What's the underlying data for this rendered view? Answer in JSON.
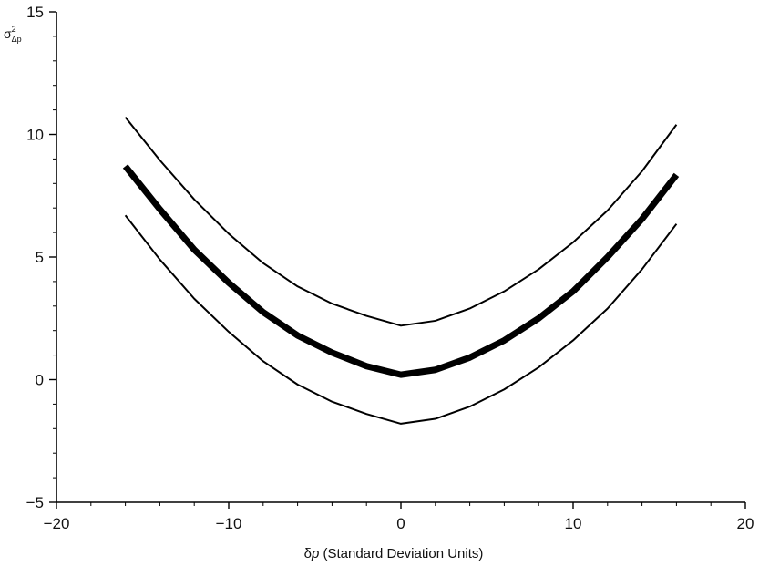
{
  "chart_data": {
    "type": "line",
    "title": "",
    "xlabel": {
      "symbol": "δ",
      "var": "p",
      "rest": " (Standard Deviation Units)"
    },
    "ylabel": {
      "base": "σ",
      "sup": "2",
      "sub": "Δp"
    },
    "xlim": [
      -20,
      20
    ],
    "ylim": [
      -5,
      15
    ],
    "xticks": [
      -20,
      -10,
      0,
      10,
      20
    ],
    "yticks": [
      -5,
      0,
      5,
      10,
      15
    ],
    "xtick_labels": [
      "−20",
      "−10",
      "0",
      "10",
      "20"
    ],
    "ytick_labels": [
      "−5",
      "0",
      "5",
      "10",
      "15"
    ],
    "grid": false,
    "legend": "none",
    "x": [
      -16,
      -14,
      -12,
      -10,
      -8,
      -6,
      -4,
      -2,
      0,
      2,
      4,
      6,
      8,
      10,
      12,
      14,
      16
    ],
    "series": [
      {
        "role": "upper",
        "color": "#000000",
        "style": "thin",
        "values": [
          10.7,
          8.95,
          7.35,
          5.95,
          4.75,
          3.8,
          3.1,
          2.6,
          2.2,
          2.4,
          2.9,
          3.6,
          4.5,
          5.6,
          6.9,
          8.5,
          10.4
        ]
      },
      {
        "role": "center",
        "color": "#000000",
        "style": "thick",
        "values": [
          8.7,
          6.95,
          5.3,
          3.95,
          2.75,
          1.8,
          1.1,
          0.55,
          0.2,
          0.4,
          0.9,
          1.6,
          2.5,
          3.6,
          5.0,
          6.55,
          8.35
        ]
      },
      {
        "role": "lower",
        "color": "#000000",
        "style": "thin",
        "values": [
          6.7,
          4.9,
          3.3,
          1.95,
          0.75,
          -0.2,
          -0.9,
          -1.4,
          -1.8,
          -1.6,
          -1.1,
          -0.4,
          0.5,
          1.6,
          2.9,
          4.5,
          6.35
        ]
      }
    ]
  }
}
